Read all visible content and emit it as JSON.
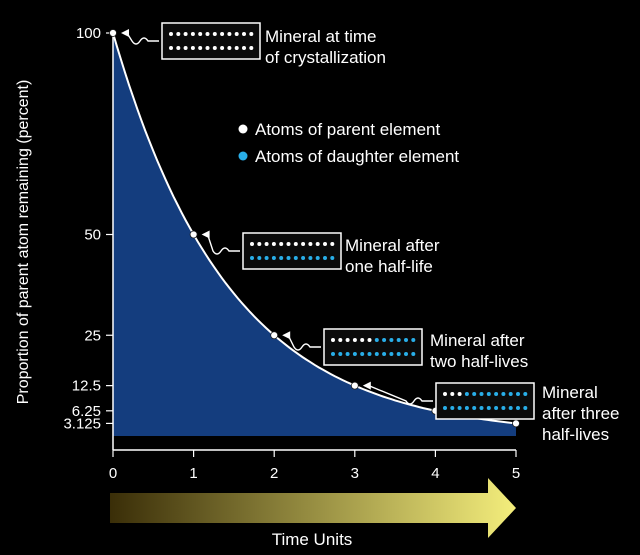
{
  "chart_data": {
    "type": "area",
    "ylabel": "Proportion of parent atom remaining (percent)",
    "xlabel": "Time Units",
    "x_ticks": [
      "0",
      "1",
      "2",
      "3",
      "4",
      "5"
    ],
    "y_ticks": [
      {
        "value": 100,
        "label": "100"
      },
      {
        "value": 50,
        "label": "50"
      },
      {
        "value": 25,
        "label": "25"
      },
      {
        "value": 12.5,
        "label": "12.5"
      },
      {
        "value": 6.25,
        "label": "6.25"
      },
      {
        "value": 3.125,
        "label": "3.125"
      }
    ],
    "xlim": [
      0,
      5
    ],
    "ylim": [
      0,
      100
    ],
    "points": [
      {
        "x": 0,
        "y": 100
      },
      {
        "x": 1,
        "y": 50
      },
      {
        "x": 2,
        "y": 25
      },
      {
        "x": 3,
        "y": 12.5
      },
      {
        "x": 4,
        "y": 6.25
      },
      {
        "x": 5,
        "y": 3.125
      }
    ],
    "legend": [
      {
        "label": "Atoms of parent element",
        "color": "#ffffff"
      },
      {
        "label": "Atoms of daughter element",
        "color": "#29aee8"
      }
    ],
    "callouts": [
      {
        "lines": [
          "Mineral at time",
          "of crystallization"
        ],
        "point": 0,
        "parent_fraction": 1.0
      },
      {
        "lines": [
          "Mineral after",
          "one half-life"
        ],
        "point": 1,
        "parent_fraction": 0.5
      },
      {
        "lines": [
          "Mineral after",
          "two half-lives"
        ],
        "point": 2,
        "parent_fraction": 0.25
      },
      {
        "lines": [
          "Mineral",
          "after three",
          "half-lives"
        ],
        "point": 3,
        "parent_fraction": 0.125
      }
    ],
    "colors": {
      "area": "#143d7e",
      "curve": "#ffffff",
      "parent_atom": "#ffffff",
      "daughter_atom": "#29aee8",
      "arrow_start": "#3a2e08",
      "arrow_end": "#f4ee7c"
    }
  }
}
